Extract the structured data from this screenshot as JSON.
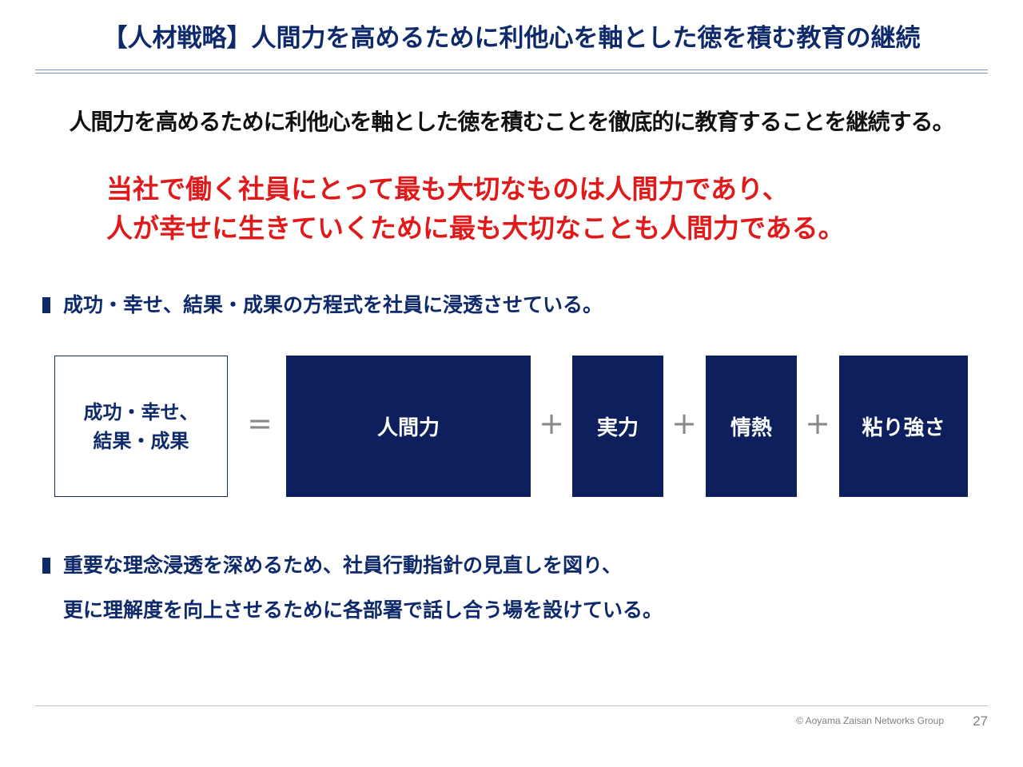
{
  "slide": {
    "title": "【人材戦略】人間力を高めるために利他心を軸とした徳を積む教育の継続",
    "lead": "人間力を高めるために利他心を軸とした徳を積むことを徹底的に教育することを継続する。",
    "highlight_lines": [
      "当社で働く社員にとって最も大切なものは人間力であり、",
      "人が幸せに生きていくために最も大切なことも人間力である。"
    ]
  },
  "bullets": [
    {
      "lines": [
        "成功・幸せ、結果・成果の方程式を社員に浸透させている。"
      ]
    },
    {
      "lines": [
        "重要な理念浸透を深めるため、社員行動指針の見直しを図り、",
        "更に理解度を向上させるために各部署で話し合う場を設けている。"
      ]
    }
  ],
  "equation": {
    "result_lines": [
      "成功・幸せ、",
      "結果・成果"
    ],
    "equals": "=",
    "plus": "+",
    "terms": [
      "人間力",
      "実力",
      "情熱",
      "粘り強さ"
    ]
  },
  "colors": {
    "navy": "#0e2a6b",
    "box_fill": "#0d1f5c",
    "highlight_red": "#e01a1a",
    "operator_gray": "#8a8a8a"
  },
  "footer": {
    "copyright": "© Aoyama Zaisan Networks Group",
    "page_number": "27"
  }
}
